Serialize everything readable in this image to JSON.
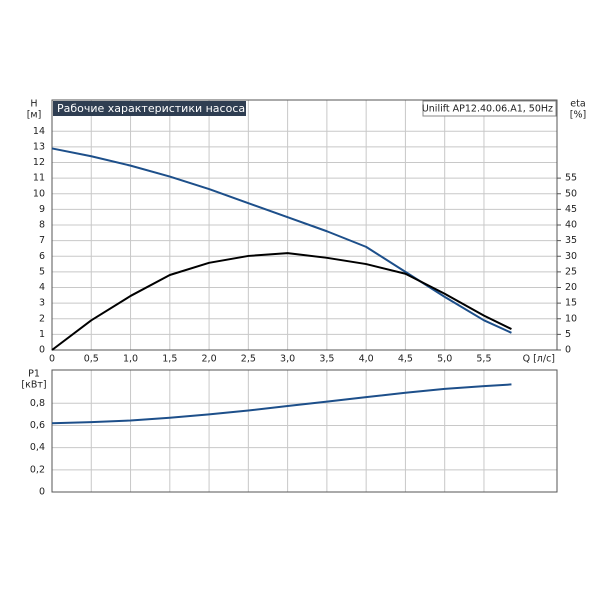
{
  "chart_data": [
    {
      "type": "line",
      "title": "Рабочие характеристики насоса",
      "annotation": "Unilift AP12.40.06.A1, 50Hz",
      "y_label": "H",
      "y_unit": "[м]",
      "y2_label": "eta",
      "y2_unit": "[%]",
      "x_label": "Q [л/с]",
      "x": [
        0,
        0.5,
        1.0,
        1.5,
        2.0,
        2.5,
        3.0,
        3.5,
        4.0,
        4.5,
        5.0,
        5.5,
        5.85
      ],
      "series": [
        {
          "color": "#1d4f8a",
          "values": [
            12.9,
            12.4,
            11.8,
            11.1,
            10.3,
            9.4,
            8.5,
            7.6,
            6.6,
            5.0,
            3.4,
            1.9,
            1.1
          ]
        },
        {
          "color": "#000000",
          "axis": "y2",
          "values": [
            0,
            9.5,
            17.3,
            24,
            27.9,
            30.1,
            31,
            29.5,
            27.5,
            24.4,
            18,
            11,
            6.7
          ]
        }
      ],
      "xlim": [
        0,
        6.43
      ],
      "xticks": [
        0,
        {
          "value": 0.5,
          "label": "0,5"
        },
        {
          "value": 1.0,
          "label": "1,0"
        },
        {
          "value": 1.5,
          "label": "1,5"
        },
        {
          "value": 2.0,
          "label": "2,0"
        },
        {
          "value": 2.5,
          "label": "2,5"
        },
        {
          "value": 3.0,
          "label": "3,0"
        },
        {
          "value": 3.5,
          "label": "3,5"
        },
        {
          "value": 4.0,
          "label": "4,0"
        },
        {
          "value": 4.5,
          "label": "4,5"
        },
        {
          "value": 5.0,
          "label": "5,0"
        },
        {
          "value": 5.5,
          "label": "5,5"
        }
      ],
      "ylim": [
        0,
        16
      ],
      "yticks": [
        0,
        1,
        2,
        3,
        4,
        5,
        6,
        7,
        8,
        9,
        10,
        11,
        12,
        13,
        14
      ],
      "y2lim": [
        0,
        80
      ],
      "y2ticks": [
        0,
        5,
        10,
        15,
        20,
        25,
        30,
        35,
        40,
        45,
        50,
        55
      ],
      "grid": true
    },
    {
      "type": "line",
      "y_label": "P1",
      "y_unit": "[кВт]",
      "x": [
        0,
        0.5,
        1.0,
        1.5,
        2.0,
        2.5,
        3.0,
        3.5,
        4.0,
        4.5,
        5.0,
        5.5,
        5.85
      ],
      "series": [
        {
          "color": "#1d4f8a",
          "values": [
            0.62,
            0.63,
            0.645,
            0.67,
            0.7,
            0.735,
            0.775,
            0.815,
            0.855,
            0.895,
            0.93,
            0.955,
            0.97
          ]
        }
      ],
      "xlim": [
        0,
        6.43
      ],
      "ylim": [
        0,
        1.1
      ],
      "yticks": [
        0,
        {
          "value": 0.2,
          "label": "0,2"
        },
        {
          "value": 0.4,
          "label": "0,4"
        },
        {
          "value": 0.6,
          "label": "0,6"
        },
        {
          "value": 0.8,
          "label": "0,8"
        }
      ],
      "grid": true
    }
  ]
}
